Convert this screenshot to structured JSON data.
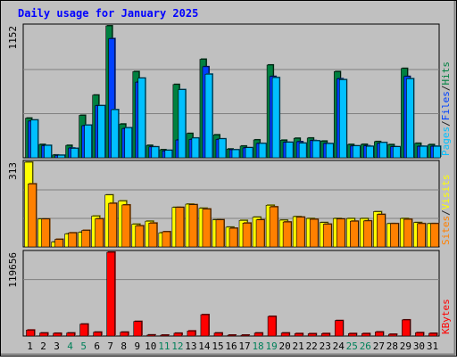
{
  "chart_data": {
    "type": "bar",
    "title": "Daily usage for January 2025",
    "categories": [
      "1",
      "2",
      "3",
      "4",
      "5",
      "6",
      "7",
      "8",
      "9",
      "10",
      "11",
      "12",
      "13",
      "14",
      "15",
      "16",
      "17",
      "18",
      "19",
      "20",
      "21",
      "22",
      "23",
      "24",
      "25",
      "26",
      "27",
      "28",
      "29",
      "30",
      "31"
    ],
    "weekend_days": [
      "4",
      "5",
      "11",
      "12",
      "18",
      "19",
      "25",
      "26"
    ],
    "panels": [
      {
        "id": "hits",
        "ymax_label": "1152",
        "ymax": 1152,
        "axis_label_parts": [
          {
            "text": "Pages",
            "color": "#00c0ff"
          },
          {
            "text": "/",
            "color": "#202020"
          },
          {
            "text": "Files",
            "color": "#0040ff"
          },
          {
            "text": "/",
            "color": "#202020"
          },
          {
            "text": "Hits",
            "color": "#008040"
          }
        ],
        "series": [
          {
            "name": "Hits",
            "color": "#008040",
            "values": [
              346,
              116,
              24,
              108,
              370,
              547,
              1152,
              294,
              752,
              108,
              70,
              640,
              212,
              860,
              200,
              76,
              102,
              156,
              810,
              153,
              170,
              172,
              145,
              752,
              116,
              117,
              141,
              115,
              780,
              126,
              115
            ]
          },
          {
            "name": "Files",
            "color": "#0040ff",
            "values": [
              320,
              105,
              20,
              85,
              280,
              455,
              1040,
              255,
              660,
              95,
              60,
              155,
              160,
              795,
              160,
              70,
              86,
              125,
              710,
              135,
              140,
              150,
              125,
              690,
              102,
              104,
              125,
              96,
              710,
              100,
              100
            ]
          },
          {
            "name": "Pages",
            "color": "#00c0ff",
            "values": [
              330,
              108,
              22,
              82,
              285,
              455,
              420,
              262,
              695,
              95,
              65,
              595,
              172,
              730,
              165,
              70,
              88,
              125,
              700,
              135,
              128,
              148,
              124,
              682,
              104,
              100,
              133,
              96,
              690,
              100,
              100
            ]
          }
        ]
      },
      {
        "id": "visits",
        "ymax_label": "313",
        "ymax": 313,
        "axis_label_parts": [
          {
            "text": "Sites",
            "color": "#ff8000"
          },
          {
            "text": "/",
            "color": "#202020"
          },
          {
            "text": "Visits",
            "color": "#ffff00"
          }
        ],
        "series": [
          {
            "name": "Visits",
            "color": "#ffff00",
            "values": [
              313,
              103,
              18,
              48,
              54,
              114,
              192,
              170,
              84,
              95,
              52,
              146,
              158,
              143,
              100,
              73,
              98,
              110,
              154,
              99,
              112,
              105,
              90,
              105,
              105,
              105,
              130,
              86,
              105,
              90,
              86
            ]
          },
          {
            "name": "Sites",
            "color": "#ff8000",
            "values": [
              233,
              103,
              28,
              52,
              61,
              104,
              161,
              155,
              78,
              88,
              56,
              146,
              156,
              140,
              100,
              69,
              88,
              100,
              148,
              92,
              110,
              102,
              84,
              103,
              95,
              96,
              120,
              86,
              102,
              86,
              86
            ]
          }
        ]
      },
      {
        "id": "kbytes",
        "ymax_label": "119656",
        "ymax": 119656,
        "axis_label_parts": [
          {
            "text": "KBytes",
            "color": "#ff0000"
          }
        ],
        "series": [
          {
            "name": "KBytes",
            "color": "#ff0000",
            "values": [
              8500,
              4300,
              3900,
              4300,
              17000,
              5500,
              119656,
              5500,
              20800,
              1500,
              1000,
              4000,
              7200,
              30500,
              4300,
              1200,
              1000,
              4300,
              28000,
              4300,
              3500,
              3300,
              3500,
              22000,
              3500,
              3500,
              5800,
              2500,
              23000,
              4800,
              3800
            ]
          }
        ]
      }
    ]
  }
}
